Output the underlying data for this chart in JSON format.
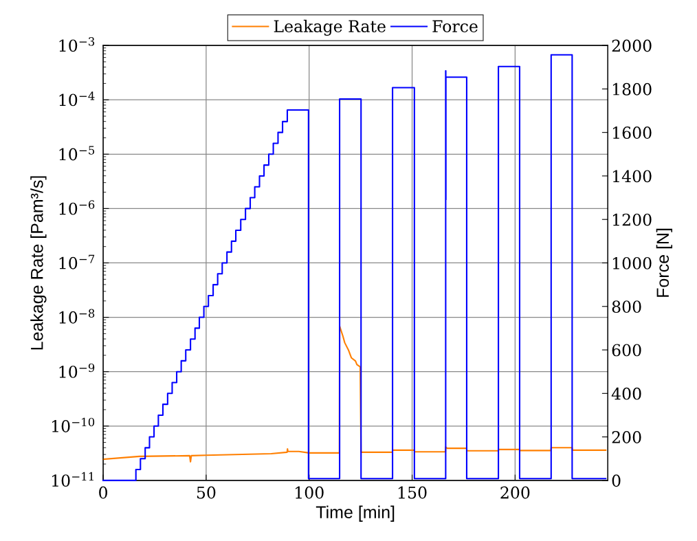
{
  "chart_data": {
    "type": "line",
    "xlabel": "Time [min]",
    "ylabel": "Leakage Rate [Pam³/s]",
    "y2label": "Force [N]",
    "xlim": [
      0,
      245
    ],
    "xticks": [
      0,
      50,
      100,
      150,
      200
    ],
    "log": true,
    "ylim": [
      1e-11,
      0.001
    ],
    "yticks": [
      {
        "value": 1e-11,
        "label": "10$^{−11}$"
      },
      {
        "value": 1e-10,
        "label": "10$^{−10}$"
      },
      {
        "value": 1e-09,
        "label": "10$^{−9}$"
      },
      {
        "value": 1e-08,
        "label": "10$^{−8}$"
      },
      {
        "value": 1e-07,
        "label": "10$^{−7}$"
      },
      {
        "value": 1e-06,
        "label": "10$^{−6}$"
      },
      {
        "value": 1e-05,
        "label": "10$^{−5}$"
      },
      {
        "value": 0.0001,
        "label": "10$^{−4}$"
      },
      {
        "value": 0.001,
        "label": "10$^{−3}$"
      }
    ],
    "y2lim": [
      0,
      2000
    ],
    "y2ticks": [
      0,
      200,
      400,
      600,
      800,
      1000,
      1200,
      1400,
      1600,
      1800,
      2000
    ],
    "grid": true,
    "legend": "top",
    "marker": "none",
    "line_style": "solid",
    "series": [
      {
        "name": "Leakage Rate",
        "color": "#ff7f00",
        "x": [
          0,
          17.7,
          42.0,
          42.4,
          42.8,
          50,
          81.6,
          89.3,
          89.5,
          89.7,
          95,
          100,
          114.7,
          114.8,
          116.4,
          117.3,
          119.1,
          120.5,
          122.5,
          123.2,
          124.8,
          125.2,
          140.4,
          140.5,
          151.1,
          151.2,
          166.2,
          166.3,
          167,
          176.5,
          176.6,
          191.9,
          192,
          202.2,
          202.3,
          217.4,
          217.5,
          227.7,
          227.8,
          244
        ],
        "values": [
          2.45e-11,
          2.77e-11,
          2.85e-11,
          2.2e-11,
          2.85e-11,
          2.9e-11,
          3.1e-11,
          3.3e-11,
          3.8e-11,
          3.4e-11,
          3.4e-11,
          3.2e-11,
          3.2e-11,
          6.9e-09,
          4.5e-09,
          3.4e-09,
          2.5e-09,
          1.8e-09,
          1.57e-09,
          1.35e-09,
          1.23e-09,
          3.3e-11,
          3.3e-11,
          3.6e-11,
          3.6e-11,
          3.35e-11,
          3.35e-11,
          4.1e-11,
          3.9e-11,
          3.9e-11,
          3.5e-11,
          3.5e-11,
          3.7e-11,
          3.7e-11,
          3.55e-11,
          3.55e-11,
          4e-11,
          4e-11,
          3.6e-11,
          3.6e-11
        ]
      },
      {
        "name": "Force",
        "color": "#0000ff",
        "axis": "y2",
        "type": "step",
        "x": [
          0,
          15.9,
          18.1,
          20.4,
          22.5,
          24.7,
          26.8,
          29.0,
          31.3,
          33.5,
          35.7,
          37.9,
          40.1,
          42.4,
          44.6,
          46.7,
          48.9,
          51.1,
          53.4,
          55.6,
          57.8,
          60.1,
          62.3,
          64.4,
          66.8,
          69.1,
          71.4,
          73.6,
          75.9,
          78.1,
          80.4,
          82.6,
          84.9,
          87.1,
          89.4,
          99.7,
          114.8,
          125.2,
          140.5,
          151.1,
          166.3,
          166.35,
          166.4,
          166.45,
          176.5,
          191.9,
          202.2,
          217.5,
          227.7,
          244
        ],
        "values": [
          0,
          50,
          100,
          150,
          200,
          250,
          300,
          350,
          400,
          450,
          500,
          550,
          600,
          650,
          700,
          750,
          800,
          850,
          900,
          950,
          1000,
          1050,
          1100,
          1150,
          1200,
          1250,
          1300,
          1350,
          1400,
          1450,
          1500,
          1550,
          1600,
          1650,
          1703,
          8,
          1754,
          8,
          1806,
          8,
          1883,
          1290,
          1854,
          1854,
          8,
          1903,
          8,
          1957,
          8,
          8
        ]
      }
    ]
  }
}
